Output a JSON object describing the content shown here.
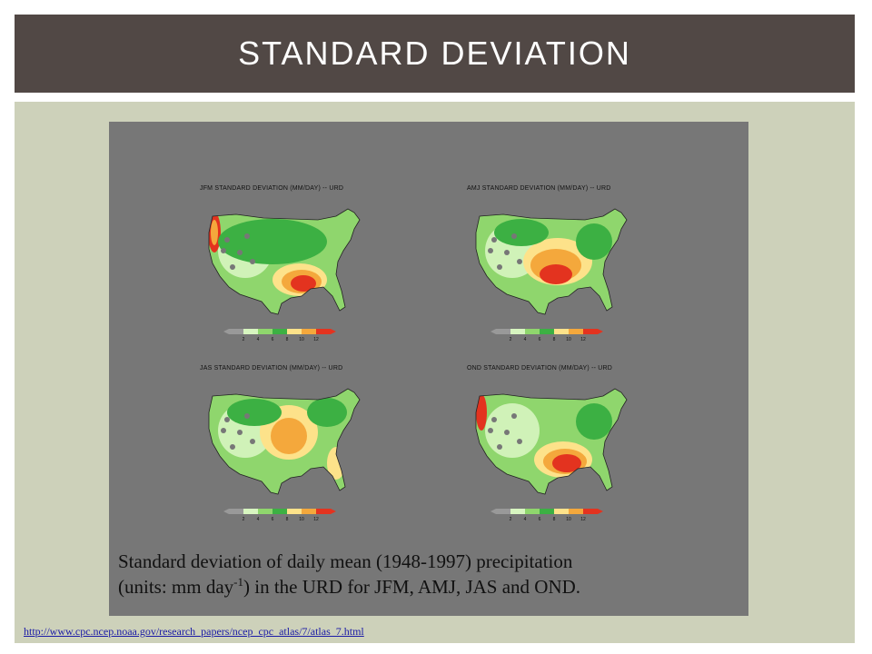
{
  "slide": {
    "title": "STANDARD DEVIATION",
    "caption": {
      "line1": "Standard deviation of daily mean (1948-1997) precipitation",
      "line2_before": "(units: mm day",
      "line2_sup": "-1",
      "line2_after": ") in the URD for JFM, AMJ, JAS and OND."
    },
    "source_url": "http://www.cpc.ncep.noaa.gov/research_papers/ncep_cpc_atlas/7/atlas_7.html"
  },
  "maps": [
    {
      "title": "JFM STANDARD DEVIATION (MM/DAY) -- URD",
      "legend_ticks": [
        "2",
        "4",
        "6",
        "8",
        "10",
        "12"
      ]
    },
    {
      "title": "AMJ STANDARD DEVIATION (MM/DAY) -- URD",
      "legend_ticks": [
        "2",
        "4",
        "6",
        "8",
        "10",
        "12"
      ]
    },
    {
      "title": "JAS STANDARD DEVIATION (MM/DAY) -- URD",
      "legend_ticks": [
        "2",
        "4",
        "6",
        "8",
        "10",
        "12"
      ]
    },
    {
      "title": "OND STANDARD DEVIATION (MM/DAY) -- URD",
      "legend_ticks": [
        "2",
        "4",
        "6",
        "8",
        "10",
        "12"
      ]
    }
  ],
  "colors": {
    "title_bar": "#514845",
    "content_bg": "#cdd1ba",
    "figure_bg": "#777777",
    "scale": [
      "#d7f5c0",
      "#8fd66d",
      "#3cb043",
      "#fde28a",
      "#f4a83c",
      "#e3331f"
    ]
  }
}
